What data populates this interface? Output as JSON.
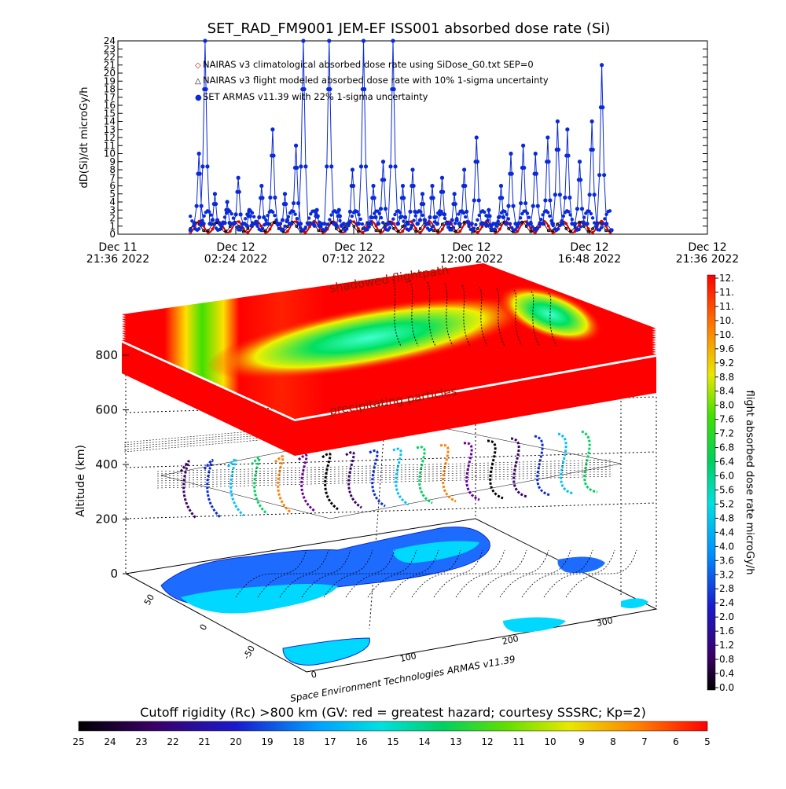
{
  "chart_data": [
    {
      "type": "line",
      "title": "SET_RAD_FM9001  JEM-EF ISS001 absorbed dose rate (Si)",
      "ylabel": "dD(Si)/dt microGy/h",
      "ylim": [
        0,
        24
      ],
      "y_ticks": [
        "0",
        "1",
        "2",
        "3",
        "4",
        "5",
        "6",
        "7",
        "8",
        "9",
        "10",
        "11",
        "12",
        "13",
        "14",
        "15",
        "16",
        "17",
        "18",
        "19",
        "20",
        "21",
        "22",
        "23",
        "24"
      ],
      "x_ticks": [
        {
          "day": "Dec 11",
          "time": "21:36 2022",
          "t": 0
        },
        {
          "day": "Dec 12",
          "time": "02:24 2022",
          "t": 4.8
        },
        {
          "day": "Dec 12",
          "time": "07:12 2022",
          "t": 9.6
        },
        {
          "day": "Dec 12",
          "time": "12:00 2022",
          "t": 14.4
        },
        {
          "day": "Dec 12",
          "time": "16:48 2022",
          "t": 19.2
        },
        {
          "day": "Dec 12",
          "time": "21:36 2022",
          "t": 24.0
        }
      ],
      "xlim_hours": [
        0,
        24
      ],
      "legend": [
        {
          "marker": "◇",
          "color": "#d40000",
          "label": "NAIRAS v3 climatological absorbed dose rate using SiDose_G0.txt SEP=0"
        },
        {
          "marker": "△",
          "color": "#000000",
          "label": "NAIRAS v3 flight modeled absorbed dose rate with 10% 1-sigma uncertainty"
        },
        {
          "marker": "●",
          "color": "#0a2ad8",
          "label": "SET ARMAS v11.39 with 22% 1-sigma uncertainty"
        }
      ],
      "series": [
        {
          "name": "SET ARMAS v11.39 with 22% 1-sigma uncertainty",
          "color": "#0a2ad8",
          "peaks": [
            {
              "t": 3.3,
              "v": 10
            },
            {
              "t": 3.55,
              "v": 24
            },
            {
              "t": 3.95,
              "v": 5
            },
            {
              "t": 4.45,
              "v": 4
            },
            {
              "t": 4.9,
              "v": 7
            },
            {
              "t": 5.35,
              "v": 3
            },
            {
              "t": 5.85,
              "v": 6
            },
            {
              "t": 6.3,
              "v": 13
            },
            {
              "t": 6.8,
              "v": 5
            },
            {
              "t": 7.25,
              "v": 11
            },
            {
              "t": 7.55,
              "v": 24
            },
            {
              "t": 8.1,
              "v": 3
            },
            {
              "t": 8.6,
              "v": 24
            },
            {
              "t": 9.0,
              "v": 3
            },
            {
              "t": 9.55,
              "v": 8
            },
            {
              "t": 10.0,
              "v": 24
            },
            {
              "t": 10.4,
              "v": 6
            },
            {
              "t": 10.8,
              "v": 9
            },
            {
              "t": 11.2,
              "v": 24
            },
            {
              "t": 11.6,
              "v": 6
            },
            {
              "t": 12.0,
              "v": 8
            },
            {
              "t": 12.4,
              "v": 5
            },
            {
              "t": 12.8,
              "v": 6
            },
            {
              "t": 13.2,
              "v": 7
            },
            {
              "t": 13.7,
              "v": 5
            },
            {
              "t": 14.1,
              "v": 8
            },
            {
              "t": 14.6,
              "v": 12
            },
            {
              "t": 15.1,
              "v": 3
            },
            {
              "t": 15.6,
              "v": 6
            },
            {
              "t": 16.0,
              "v": 10
            },
            {
              "t": 16.5,
              "v": 11
            },
            {
              "t": 17.0,
              "v": 10
            },
            {
              "t": 17.5,
              "v": 12
            },
            {
              "t": 17.9,
              "v": 14
            },
            {
              "t": 18.3,
              "v": 13
            },
            {
              "t": 18.8,
              "v": 9
            },
            {
              "t": 19.3,
              "v": 14
            },
            {
              "t": 19.7,
              "v": 21
            }
          ],
          "t_end": 20.1,
          "baseline": 0.5
        },
        {
          "name": "NAIRAS v3 climatological absorbed dose rate using SiDose_G0.txt SEP=0",
          "color": "#d40000",
          "range": [
            0.2,
            1.6
          ],
          "period_hours": 0.78
        },
        {
          "name": "NAIRAS v3 flight modeled absorbed dose rate with 10% 1-sigma uncertainty",
          "color": "#000000",
          "range": [
            0.3,
            1.5
          ],
          "period_hours": 0.78
        }
      ]
    },
    {
      "type": "scatter",
      "title": "",
      "zlabel": "Altitude (km)",
      "z_ticks": [
        "0",
        "200",
        "400",
        "600",
        "800"
      ],
      "lat_ticks": [
        "50",
        "0",
        "-50"
      ],
      "lon_ticks": [
        "0",
        "100",
        "200",
        "300"
      ],
      "annotations": [
        "shadowed flightpath",
        "precipitating particles"
      ],
      "credit": "Space Environment Technologies ARMAS v11.39"
    }
  ],
  "colorbar_right": {
    "label": "flight absorbed dose rate microGy/h",
    "ticks": [
      "0.0",
      "0.4",
      "0.8",
      "1.2",
      "1.6",
      "2.0",
      "2.4",
      "2.8",
      "3.2",
      "3.6",
      "4.0",
      "4.4",
      "4.8",
      "5.2",
      "5.6",
      "6.0",
      "6.4",
      "6.8",
      "7.2",
      "7.6",
      "8.0",
      "8.4",
      "8.8",
      "9.2",
      "9.6",
      "10.",
      "10.",
      "11.",
      "11.",
      "12."
    ]
  },
  "colorbar_bottom": {
    "label": "Cutoff rigidity (Rc) >800 km (GV: red = greatest hazard; courtesy SSSRC; Kp=2)",
    "ticks": [
      "25",
      "24",
      "23",
      "22",
      "21",
      "20",
      "19",
      "18",
      "17",
      "16",
      "15",
      "14",
      "13",
      "12",
      "11",
      "10",
      "9",
      "8",
      "7",
      "6",
      "5"
    ]
  },
  "colors": {
    "armas_blue": "#0a2ad8",
    "nairas_red": "#d40000",
    "hazard_red": "#ff0000"
  }
}
